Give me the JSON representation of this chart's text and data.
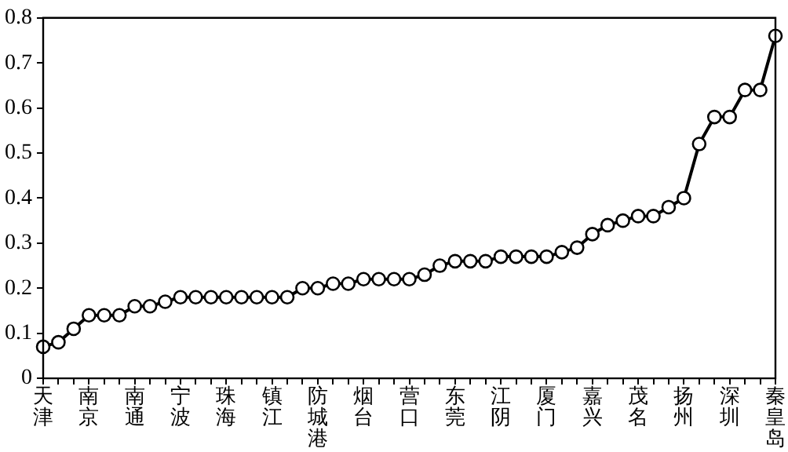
{
  "chart_data": {
    "type": "line",
    "categories": [
      "天津",
      null,
      null,
      "南京",
      null,
      null,
      "南通",
      null,
      null,
      "宁波",
      null,
      null,
      "珠海",
      null,
      null,
      "镇江",
      null,
      null,
      "防城港",
      null,
      null,
      "烟台",
      null,
      null,
      "营口",
      null,
      null,
      "东莞",
      null,
      null,
      "江阴",
      null,
      null,
      "厦门",
      null,
      null,
      "嘉兴",
      null,
      null,
      "茂名",
      null,
      null,
      "扬州",
      null,
      null,
      "深圳",
      null,
      null,
      "秦皇岛"
    ],
    "series": [
      {
        "color": "#000000",
        "values": [
          0.07,
          0.08,
          0.11,
          0.14,
          0.14,
          0.14,
          0.16,
          0.16,
          0.17,
          0.18,
          0.18,
          0.18,
          0.18,
          0.18,
          0.18,
          0.18,
          0.18,
          0.2,
          0.2,
          0.21,
          0.21,
          0.22,
          0.22,
          0.22,
          0.22,
          0.23,
          0.25,
          0.26,
          0.26,
          0.26,
          0.27,
          0.27,
          0.27,
          0.27,
          0.28,
          0.29,
          0.32,
          0.34,
          0.35,
          0.36,
          0.36,
          0.38,
          0.4,
          0.52,
          0.58,
          0.58,
          0.64,
          0.64,
          0.76
        ]
      }
    ],
    "ylim": [
      0,
      0.8
    ],
    "yticks": [
      0,
      0.1,
      0.2,
      0.3,
      0.4,
      0.5,
      0.6,
      0.7,
      0.8
    ],
    "grid": false,
    "legend": false,
    "marker": "circle",
    "line_style": "solid"
  }
}
